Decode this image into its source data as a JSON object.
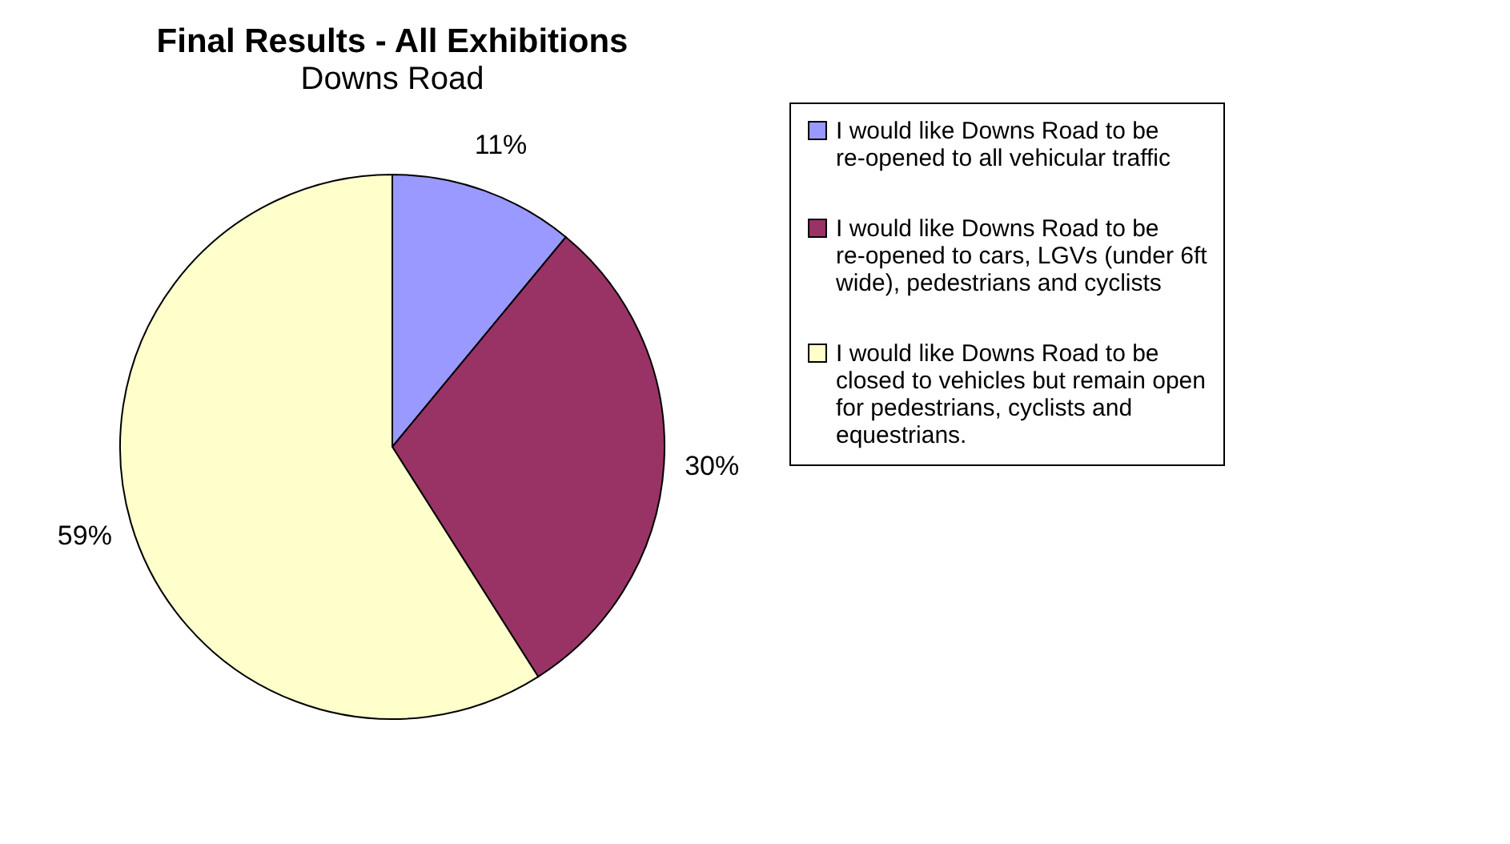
{
  "chart_data": {
    "type": "pie",
    "title": "Final Results - All Exhibitions",
    "subtitle": "Downs Road",
    "categories": [
      "I would like Downs Road to be re-opened to all vehicular traffic",
      "I would like Downs Road to be re-opened to cars, LGVs (under 6ft wide), pedestrians and cyclists",
      "I would like Downs Road to be closed to vehicles but remain open for pedestrians, cyclists and equestrians."
    ],
    "values": [
      11,
      30,
      59
    ],
    "value_labels": [
      "11%",
      "30%",
      "59%"
    ],
    "colors": [
      "#9999ff",
      "#993366",
      "#ffffcc"
    ],
    "legend": "right"
  }
}
